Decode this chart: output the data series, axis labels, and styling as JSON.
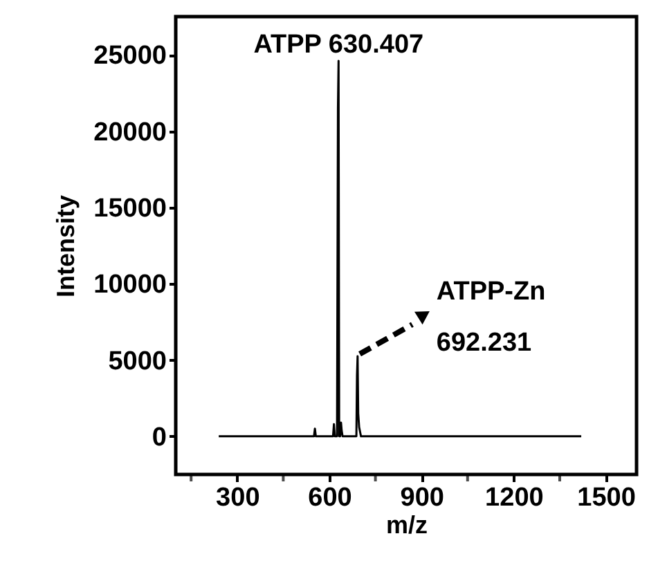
{
  "chart_data": {
    "type": "line",
    "xlabel": "m/z",
    "ylabel": "Intensity",
    "x": [
      240,
      550,
      553,
      556,
      560,
      612,
      615,
      618,
      625,
      628,
      630,
      632,
      635,
      638,
      640,
      643,
      660,
      688,
      690,
      692,
      694,
      697,
      700,
      703,
      1420
    ],
    "series": [
      {
        "color": "#000000",
        "values": [
          0,
          0,
          500,
          0,
          0,
          0,
          800,
          0,
          0,
          21500,
          24600,
          0,
          0,
          900,
          400,
          0,
          0,
          0,
          4000,
          5250,
          1500,
          600,
          300,
          0,
          0
        ]
      }
    ],
    "xlim": [
      100,
      1600
    ],
    "xticks": [
      {
        "value": 150,
        "label": null
      },
      300,
      {
        "value": 450,
        "label": null
      },
      600,
      {
        "value": 750,
        "label": null
      },
      900,
      {
        "value": 1050,
        "label": null
      },
      1200,
      {
        "value": 1350,
        "label": null
      },
      1500
    ],
    "ylim": [
      -2500,
      27500
    ],
    "yticks": [
      0,
      5000,
      10000,
      15000,
      20000,
      25000
    ],
    "annotations": [
      {
        "text": "ATPP  630.407",
        "x": 630,
        "y": 24600
      },
      {
        "text": "ATPP-Zn\n692.231",
        "x": 692,
        "y": 5250
      }
    ],
    "grid": false,
    "marker": "none",
    "line_style": "solid"
  }
}
